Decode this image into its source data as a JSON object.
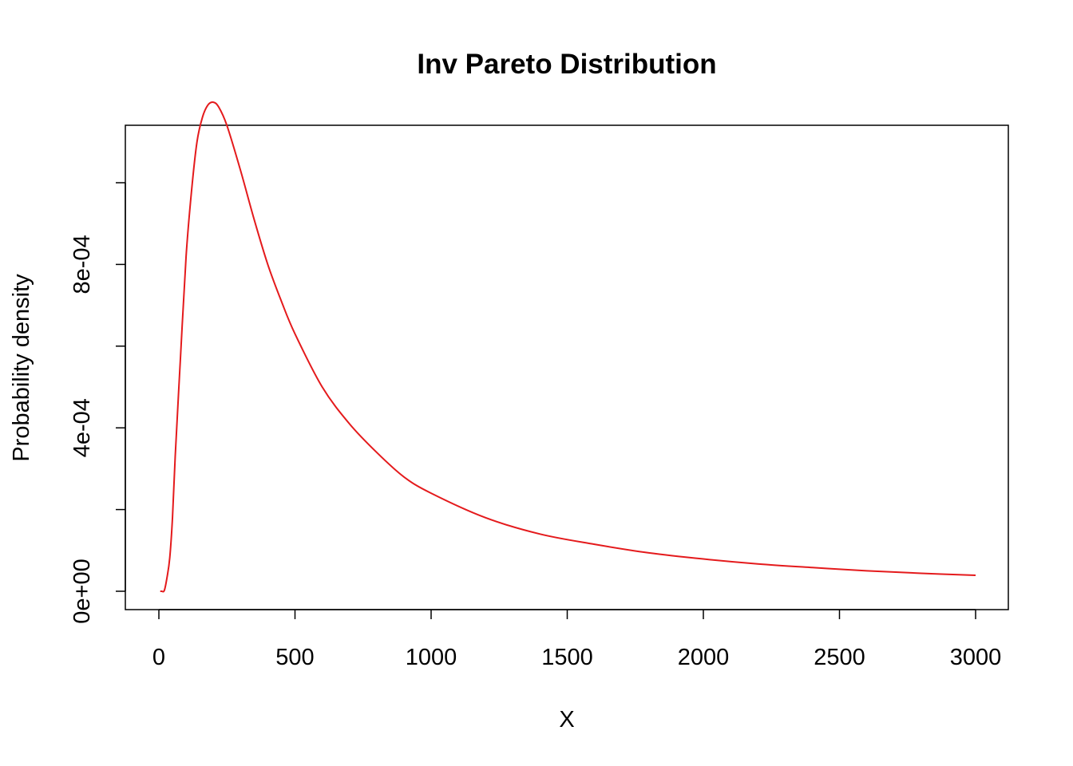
{
  "chart_data": {
    "type": "line",
    "title": "Inv Pareto Distribution",
    "xlabel": "X",
    "ylabel": "Probability density",
    "xlim": [
      0,
      3000
    ],
    "ylim": [
      0,
      0.0012
    ],
    "x_ticks": [
      0,
      500,
      1000,
      1500,
      2000,
      2500,
      3000
    ],
    "x_tick_labels": [
      "0",
      "500",
      "1000",
      "1500",
      "2000",
      "2500",
      "3000"
    ],
    "y_ticks": [
      0,
      0.0002,
      0.0004,
      0.0006,
      0.0008,
      0.001
    ],
    "y_tick_labels": [
      "0e+00",
      "",
      "4e-04",
      "",
      "8e-04",
      ""
    ],
    "grid": false,
    "series": [
      {
        "color": "#e41a1c",
        "x": [
          5,
          10,
          20,
          30,
          40,
          50,
          60,
          80,
          100,
          120,
          140,
          160,
          180,
          200,
          220,
          250,
          300,
          350,
          400,
          450,
          500,
          600,
          700,
          800,
          900,
          1000,
          1200,
          1400,
          1600,
          1800,
          2000,
          2200,
          2400,
          2600,
          2800,
          3000
        ],
        "y": [
          0,
          3e-08,
          2e-06,
          3.4e-05,
          8.2e-05,
          0.00018,
          0.00033,
          0.00058,
          0.00082,
          0.00098,
          0.0011,
          0.00116,
          0.00119,
          0.001197,
          0.001185,
          0.00114,
          0.00103,
          0.00091,
          0.0008,
          0.00071,
          0.00063,
          0.0005,
          0.00041,
          0.00034,
          0.00028,
          0.00024,
          0.00018,
          0.00014,
          0.000115,
          9.4e-05,
          7.9e-05,
          6.7e-05,
          5.8e-05,
          5e-05,
          4.4e-05,
          3.9e-05
        ]
      }
    ]
  }
}
